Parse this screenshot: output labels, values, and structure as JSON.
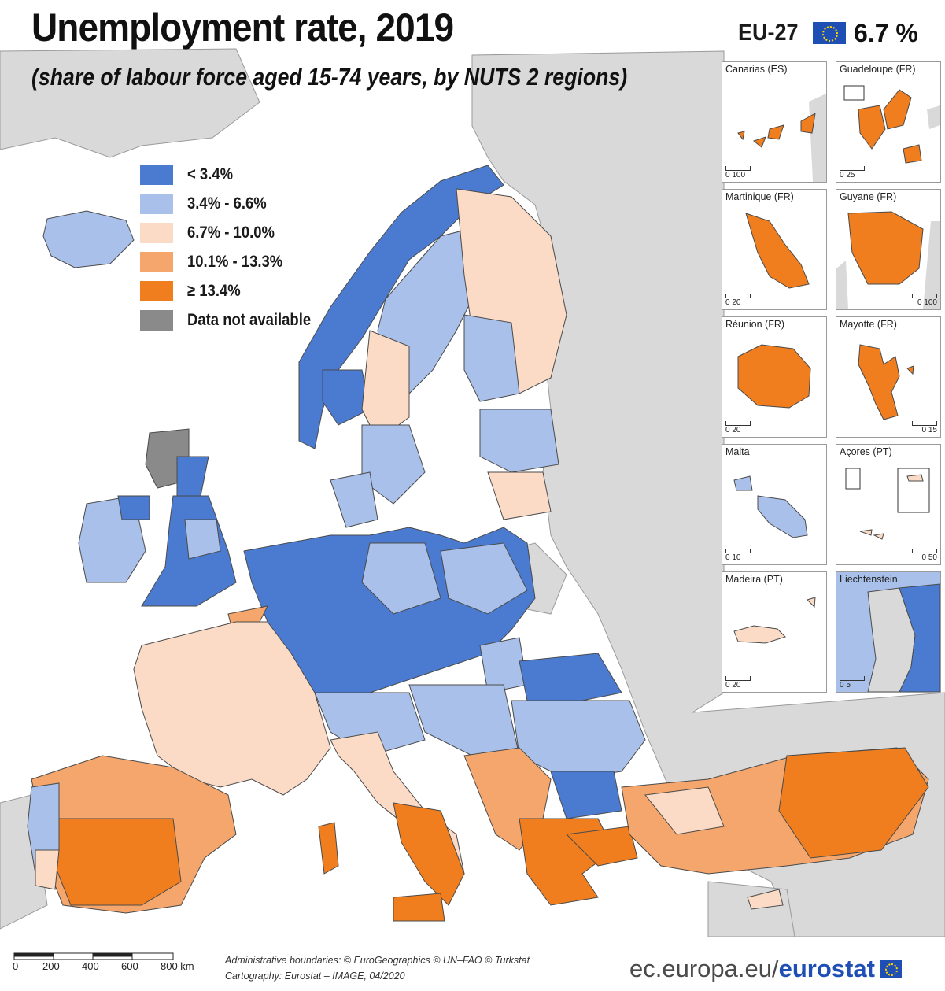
{
  "title": "Unemployment rate, 2019",
  "subtitle": "(share of labour force aged 15-74 years, by NUTS 2 regions)",
  "eu_indicator": {
    "label": "EU-27",
    "value": "6.7 %",
    "flag_icon": "eu-flag-icon"
  },
  "legend": [
    {
      "label": "< 3.4%",
      "color": "#4a7bd0"
    },
    {
      "label": "3.4% - 6.6%",
      "color": "#a9c1ea"
    },
    {
      "label": "6.7% - 10.0%",
      "color": "#fbdac6"
    },
    {
      "label": "10.1% - 13.3%",
      "color": "#f5a66c"
    },
    {
      "label": "≥ 13.4%",
      "color": "#f07d1e"
    },
    {
      "label": "Data not available",
      "color": "#8a8a8a"
    }
  ],
  "colors": {
    "sea": "#ffffff",
    "non_eu_land": "#d9d9d9",
    "borders": "#4a4a4a"
  },
  "insets": [
    {
      "name": "Canarias (ES)",
      "scale_label": "0   100"
    },
    {
      "name": "Guadeloupe (FR)",
      "scale_label": "0   25"
    },
    {
      "name": "Martinique (FR)",
      "scale_label": "0   20"
    },
    {
      "name": "Guyane (FR)",
      "scale_label": "0   100"
    },
    {
      "name": "Réunion (FR)",
      "scale_label": "0   20"
    },
    {
      "name": "Mayotte (FR)",
      "scale_label": "0   15"
    },
    {
      "name": "Malta",
      "scale_label": "0   10"
    },
    {
      "name": "Açores (PT)",
      "scale_label": "0   50"
    },
    {
      "name": "Madeira (PT)",
      "scale_label": "0   20"
    },
    {
      "name": "Liechtenstein",
      "scale_label": "0   5"
    }
  ],
  "scale": {
    "labels": [
      "0",
      "200",
      "400",
      "600",
      "800 km"
    ]
  },
  "sources": {
    "line1": "Administrative boundaries: © EuroGeographics © UN–FAO © Turkstat",
    "line2": "Cartography: Eurostat – IMAGE, 04/2020"
  },
  "brand": {
    "url": "ec.europa.eu/",
    "name": "eurostat"
  }
}
